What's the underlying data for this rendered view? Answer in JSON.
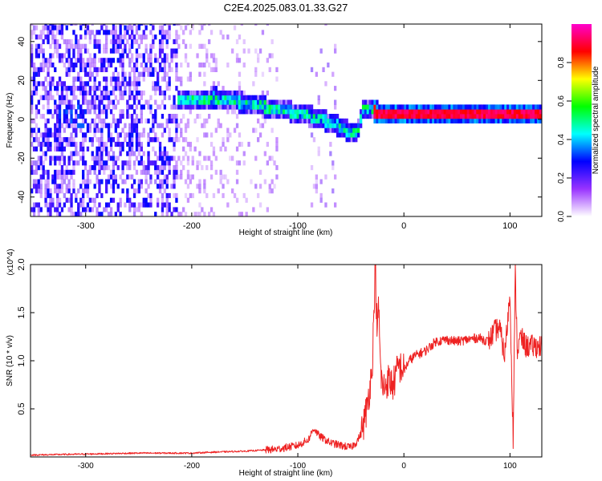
{
  "title": "C2E4.2025.083.01.33.G27",
  "chart_data": [
    {
      "type": "heatmap",
      "xlabel": "Height of straight line (km)",
      "ylabel": "Frequency (Hz)",
      "xlim": [
        -352,
        130
      ],
      "ylim": [
        -50,
        49
      ],
      "xticks": [
        -300,
        -200,
        -100,
        0,
        100
      ],
      "yticks": [
        -40,
        -20,
        0,
        20,
        40
      ],
      "colorbar": {
        "label": "Normalized spectral amplitude",
        "range": [
          0.0,
          1.0
        ],
        "ticks": [
          "0.0",
          "0.2",
          "0.4",
          "0.6",
          "0.8"
        ],
        "colors": [
          "#ffffff",
          "#9933ff",
          "#0000ff",
          "#00ffff",
          "#00ff00",
          "#ffff00",
          "#ff0000",
          "#ff00cc"
        ]
      },
      "ridge": {
        "x": [
          -215,
          -200,
          -180,
          -160,
          -140,
          -120,
          -100,
          -80,
          -60,
          -50,
          -45,
          -40,
          -30,
          -20,
          0,
          50,
          100,
          130
        ],
        "y": [
          9,
          9,
          10,
          8,
          6,
          4,
          2,
          -1,
          -5,
          -9,
          -7,
          4,
          3,
          2,
          2,
          2,
          2,
          2
        ]
      }
    },
    {
      "type": "line",
      "xlabel": "Height of straight line (km)",
      "ylabel": "SNR (10 * v/v)",
      "y_multiplier": "(x10^4)",
      "xlim": [
        -352,
        130
      ],
      "ylim": [
        0,
        2.0
      ],
      "xticks": [
        -300,
        -200,
        -100,
        0,
        100
      ],
      "yticks": [
        "0.5",
        "1.0",
        "1.5",
        "2.0"
      ],
      "series": [
        {
          "color": "#ee2222",
          "x": [
            -352,
            -300,
            -250,
            -200,
            -180,
            -150,
            -120,
            -100,
            -90,
            -85,
            -80,
            -70,
            -60,
            -50,
            -45,
            -40,
            -35,
            -30,
            -28,
            -27,
            -25,
            -24,
            -22,
            -20,
            -15,
            -10,
            -5,
            0,
            5,
            10,
            20,
            30,
            40,
            50,
            60,
            70,
            80,
            85,
            90,
            95,
            100,
            103,
            105,
            107,
            110,
            115,
            120,
            130
          ],
          "y": [
            0.02,
            0.03,
            0.04,
            0.04,
            0.05,
            0.06,
            0.08,
            0.12,
            0.18,
            0.3,
            0.22,
            0.15,
            0.12,
            0.1,
            0.15,
            0.25,
            0.5,
            0.9,
            1.6,
            2.0,
            1.2,
            1.65,
            0.9,
            0.7,
            0.8,
            0.75,
            0.95,
            0.9,
            1.0,
            1.05,
            1.1,
            1.2,
            1.22,
            1.2,
            1.22,
            1.24,
            1.2,
            1.3,
            1.35,
            1.05,
            1.7,
            0.2,
            1.9,
            1.1,
            1.25,
            1.15,
            1.15,
            1.15
          ]
        }
      ]
    }
  ]
}
